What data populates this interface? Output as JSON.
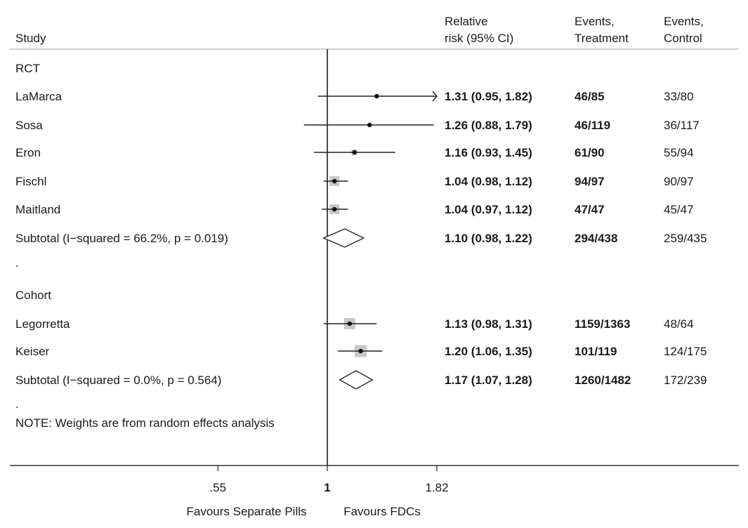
{
  "headers": {
    "study": "Study",
    "rr_line1": "Relative",
    "rr_line2": "risk (95% CI)",
    "et_line1": "Events,",
    "et_line2": "Treatment",
    "ec_line1": "Events,",
    "ec_line2": "Control"
  },
  "chart_data": {
    "type": "forest",
    "x_scale": "log",
    "null_value": 1,
    "xlim": [
      0.55,
      1.82
    ],
    "x_ticks": [
      {
        "value": 0.55,
        "label": ".55"
      },
      {
        "value": 1,
        "label": "1"
      },
      {
        "value": 1.82,
        "label": "1.82"
      }
    ],
    "x_caption_left": "Favours Separate Pills",
    "x_caption_right": "Favours FDCs",
    "note": "NOTE: Weights are from random effects analysis",
    "rows": [
      {
        "kind": "group",
        "label": "RCT"
      },
      {
        "kind": "study",
        "label": "LaMarca",
        "rr": 1.31,
        "lo": 0.95,
        "hi": 1.82,
        "ci_text": "1.31 (0.95, 1.82)",
        "events_treatment": "46/85",
        "events_control": "33/80",
        "weight_box": 5,
        "arrow_right": true
      },
      {
        "kind": "study",
        "label": "Sosa",
        "rr": 1.26,
        "lo": 0.88,
        "hi": 1.79,
        "ci_text": "1.26 (0.88, 1.79)",
        "events_treatment": "46/119",
        "events_control": "36/117",
        "weight_box": 3
      },
      {
        "kind": "study",
        "label": "Eron",
        "rr": 1.16,
        "lo": 0.93,
        "hi": 1.45,
        "ci_text": "1.16 (0.93, 1.45)",
        "events_treatment": "61/90",
        "events_control": "55/94",
        "weight_box": 8
      },
      {
        "kind": "study",
        "label": "Fischl",
        "rr": 1.04,
        "lo": 0.98,
        "hi": 1.12,
        "ci_text": "1.04 (0.98, 1.12)",
        "events_treatment": "94/97",
        "events_control": "90/97",
        "weight_box": 14
      },
      {
        "kind": "study",
        "label": "Maitland",
        "rr": 1.04,
        "lo": 0.97,
        "hi": 1.12,
        "ci_text": "1.04 (0.97, 1.12)",
        "events_treatment": "47/47",
        "events_control": "45/47",
        "weight_box": 14
      },
      {
        "kind": "subtotal",
        "label": "Subtotal  (I−squared = 66.2%, p = 0.019)",
        "rr": 1.1,
        "lo": 0.98,
        "hi": 1.22,
        "ci_text": "1.10 (0.98, 1.22)",
        "events_treatment": "294/438",
        "events_control": "259/435"
      },
      {
        "kind": "spacer",
        "label": "."
      },
      {
        "kind": "group",
        "label": "Cohort"
      },
      {
        "kind": "study",
        "label": "Legorretta",
        "rr": 1.13,
        "lo": 0.98,
        "hi": 1.31,
        "ci_text": "1.13 (0.98, 1.31)",
        "events_treatment": "1159/1363",
        "events_control": "48/64",
        "weight_box": 16
      },
      {
        "kind": "study",
        "label": "Keiser",
        "rr": 1.2,
        "lo": 1.06,
        "hi": 1.35,
        "ci_text": "1.20 (1.06, 1.35)",
        "events_treatment": "101/119",
        "events_control": "124/175",
        "weight_box": 17
      },
      {
        "kind": "subtotal",
        "label": "Subtotal  (I−squared = 0.0%, p = 0.564)",
        "rr": 1.17,
        "lo": 1.07,
        "hi": 1.28,
        "ci_text": "1.17 (1.07, 1.28)",
        "events_treatment": "1260/1482",
        "events_control": "172/239"
      },
      {
        "kind": "spacer",
        "label": "."
      }
    ]
  }
}
